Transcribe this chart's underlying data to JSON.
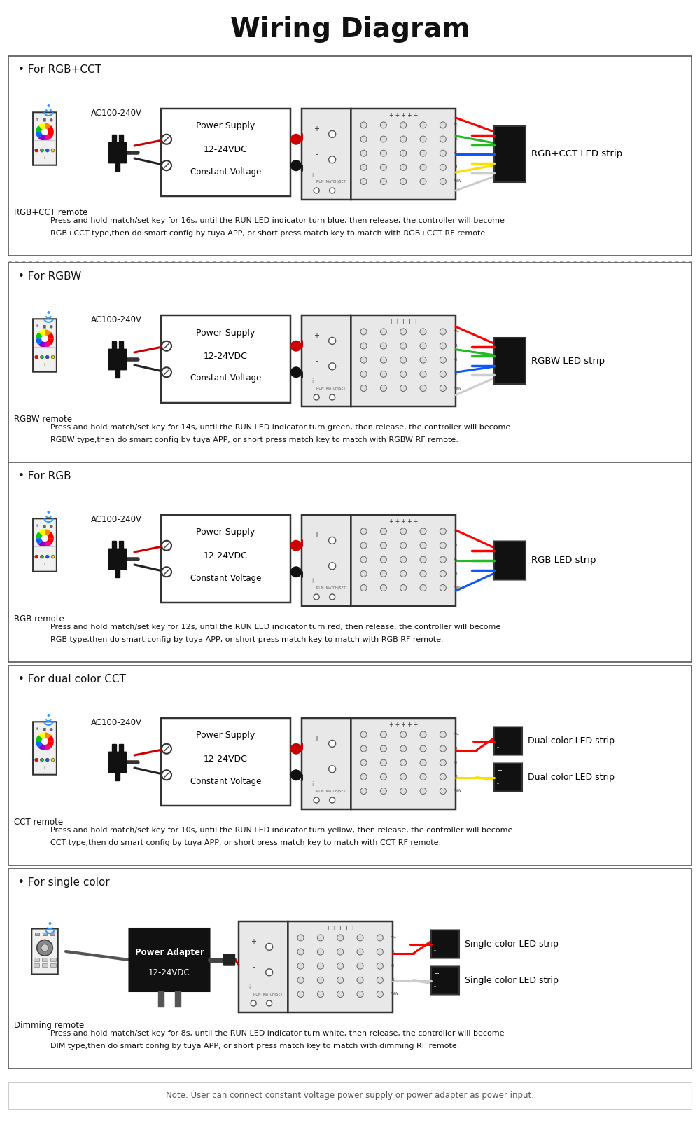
{
  "title": "Wiring Diagram",
  "title_fontsize": 28,
  "title_fontweight": "bold",
  "bg_color": "#ffffff",
  "sections": [
    {
      "label": "For RGB+CCT",
      "remote_label": "RGB+CCT remote",
      "strip_label": "RGB+CCT LED strip",
      "desc_line1": "Press and hold match/set key for 16s, until the RUN LED indicator turn blue, then release, the controller will become",
      "desc_line2": "RGB+CCT type,then do smart config by tuya APP, or short press match key to match with RGB+CCT RF remote.",
      "wire_colors": [
        "#ff0000",
        "#22bb22",
        "#1155ff",
        "#ffdd00",
        "#cccccc"
      ],
      "num_wires": 5,
      "dual_strip": false
    },
    {
      "label": "For RGBW",
      "remote_label": "RGBW remote",
      "strip_label": "RGBW LED strip",
      "desc_line1": "Press and hold match/set key for 14s, until the RUN LED indicator turn green, then release, the controller will become",
      "desc_line2": "RGBW type,then do smart config by tuya APP, or short press match key to match with RGBW RF remote.",
      "wire_colors": [
        "#ff0000",
        "#22bb22",
        "#1155ff",
        "#cccccc"
      ],
      "num_wires": 4,
      "dual_strip": false
    },
    {
      "label": "For RGB",
      "remote_label": "RGB remote",
      "strip_label": "RGB LED strip",
      "desc_line1": "Press and hold match/set key for 12s, until the RUN LED indicator turn red, then release, the controller will become",
      "desc_line2": "RGB type,then do smart config by tuya APP, or short press match key to match with RGB RF remote.",
      "wire_colors": [
        "#ff0000",
        "#22bb22",
        "#1155ff"
      ],
      "num_wires": 3,
      "dual_strip": false
    },
    {
      "label": "For dual color CCT",
      "remote_label": "CCT remote",
      "strip_label_top": "Dual color LED strip",
      "strip_label_bot": "Dual color LED strip",
      "desc_line1": "Press and hold match/set key for 10s, until the RUN LED indicator turn yellow, then release, the controller will become",
      "desc_line2": "CCT type,then do smart config by tuya APP, or short press match key to match with CCT RF remote.",
      "wire_colors": [
        "#ff0000",
        "#ffdd00",
        "#cccccc"
      ],
      "num_wires": 3,
      "dual_strip": true,
      "power_adapter": false
    },
    {
      "label": "For single color",
      "remote_label": "Dimming remote",
      "strip_label_top": "Single color LED strip",
      "strip_label_bot": "Single color LED strip",
      "desc_line1": "Press and hold match/set key for 8s, until the RUN LED indicator turn white, then release, the controller will become",
      "desc_line2": "DIM type,then do smart config by tuya APP, or short press match key to match with dimming RF remote.",
      "wire_colors": [
        "#ff0000",
        "#cccccc"
      ],
      "num_wires": 2,
      "dual_strip": true,
      "power_adapter": true
    }
  ],
  "footer": "Note: User can connect constant voltage power supply or power adapter as power input."
}
